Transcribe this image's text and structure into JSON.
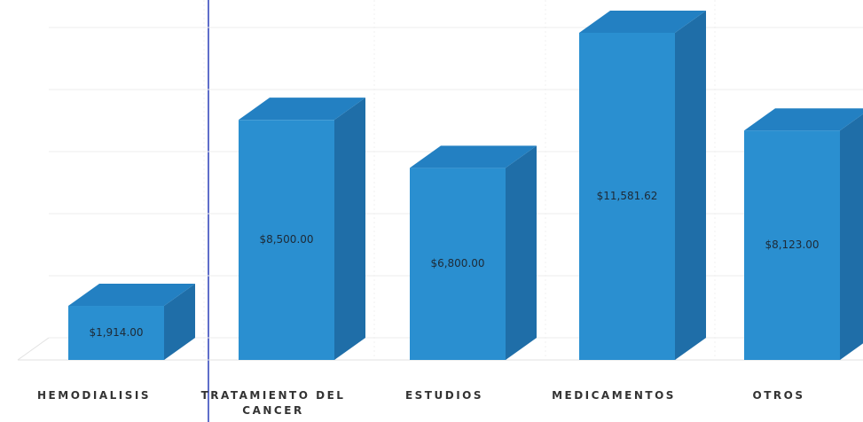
{
  "chart_data": {
    "type": "bar3d",
    "categories": [
      "HEMODIALISIS",
      "TRATAMIENTO DEL CANCER",
      "ESTUDIOS",
      "MEDICAMENTOS",
      "OTROS"
    ],
    "values": [
      1914,
      8500,
      6800,
      11581.62,
      8123
    ],
    "value_labels": [
      "$1,914.00",
      "$8,500.00",
      "$6,800.00",
      "$11,581.62",
      "$8,123.00"
    ],
    "color": "#2a8fd0"
  }
}
